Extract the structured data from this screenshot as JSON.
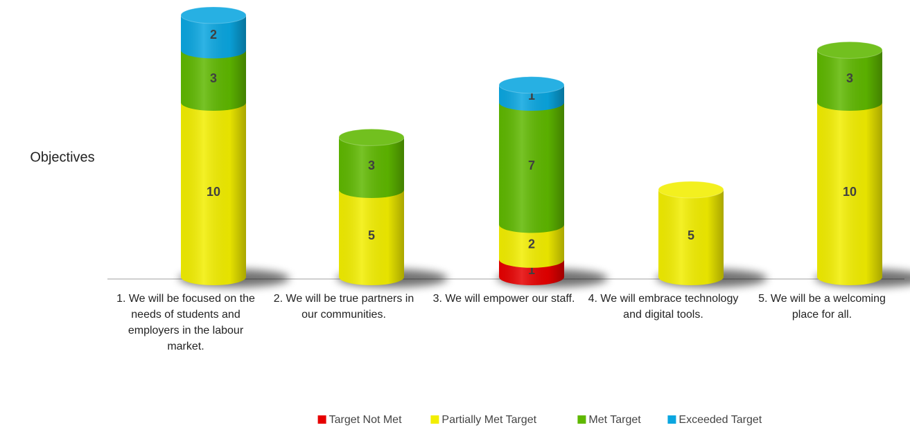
{
  "chart_data": {
    "type": "bar",
    "stacked": true,
    "style": "3d-cylinder",
    "ylabel": "Objectives",
    "categories": [
      "1. We will be focused on the needs of students and employers in the labour market.",
      "2. We will be true partners in our communities.",
      "3. We will empower our staff.",
      "4. We will embrace technology and digital tools.",
      "5. We will be a welcoming place for all."
    ],
    "series": [
      {
        "name": "Target Not Met",
        "color": "#e60000",
        "values": [
          null,
          null,
          1,
          null,
          null
        ]
      },
      {
        "name": "Partially Met Target",
        "color": "#f2ee00",
        "values": [
          10,
          5,
          2,
          5,
          10
        ]
      },
      {
        "name": "Met Target",
        "color": "#5fb800",
        "values": [
          3,
          3,
          7,
          null,
          3
        ]
      },
      {
        "name": "Exceeded Target",
        "color": "#0aa6e0",
        "values": [
          2,
          null,
          1,
          null,
          null
        ]
      }
    ],
    "legend": "bottom"
  }
}
